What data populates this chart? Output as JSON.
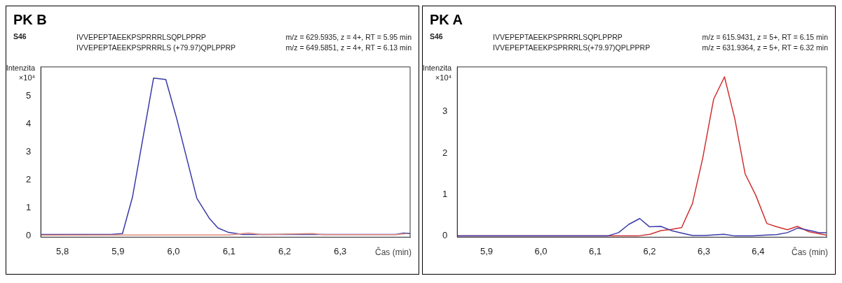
{
  "chart_data": [
    {
      "type": "line",
      "title": "PK B",
      "subtitle": "S46",
      "annotations": [
        "IVVEPEPTAEEKPSPRRRLSQPLPPRP",
        "IVVEPEPTAEEKPSPRRRLS (+79.97)QPLPPRP",
        "m/z = 629.5935, z = 4+, RT = 5.95 min",
        "m/z = 649.5851, z = 4+, RT = 6.13 min"
      ],
      "xlabel": "Čas (min)",
      "ylabel": "Intenzita ×10⁴",
      "xlim": [
        5.761,
        6.426
      ],
      "ylim": [
        -0.05,
        6.05
      ],
      "xticks": [
        {
          "value": 5.8,
          "label": "5,8"
        },
        {
          "value": 5.9,
          "label": "5,9"
        },
        {
          "value": 6.0,
          "label": "6,0"
        },
        {
          "value": 6.1,
          "label": "6,1"
        },
        {
          "value": 6.2,
          "label": "6,2"
        },
        {
          "value": 6.3,
          "label": "6,3"
        }
      ],
      "yticks": [
        0,
        1,
        2,
        3,
        4,
        5
      ],
      "marker": "none",
      "series": [
        {
          "color": "#e08a7a",
          "x": [
            5.761,
            6.1,
            6.135,
            6.16,
            6.2,
            6.25,
            6.27,
            6.4,
            6.42
          ],
          "values": [
            0.02,
            0.03,
            0.1,
            0.04,
            0.06,
            0.08,
            0.04,
            0.04,
            0.08
          ]
        },
        {
          "color": "#3a3aa8",
          "x": [
            5.761,
            5.888,
            5.908,
            5.926,
            5.964,
            5.986,
            6.005,
            6.042,
            6.065,
            6.08,
            6.099,
            6.124,
            6.4,
            6.415,
            6.426
          ],
          "values": [
            0.05,
            0.05,
            0.08,
            1.38,
            5.65,
            5.6,
            4.25,
            1.34,
            0.61,
            0.28,
            0.12,
            0.05,
            0.05,
            0.1,
            0.08
          ]
        }
      ]
    },
    {
      "type": "line",
      "title": "PK A",
      "subtitle": "S46",
      "annotations": [
        "IVVEPEPTAEEKPSPRRRLSQPLPPRP",
        "IVVEPEPTAEEKPSPRRRLS(+79.97)QPLPPRP",
        "m/z = 615.9431, z = 5+, RT = 6.15 min",
        "m/z = 631.9364, z = 5+, RT = 6.32 min"
      ],
      "xlabel": "Čas (min)",
      "ylabel": "Intenzita ×10⁴",
      "xlim": [
        5.846,
        6.526
      ],
      "ylim": [
        -0.03,
        4.08
      ],
      "xticks": [
        {
          "value": 5.9,
          "label": "5,9"
        },
        {
          "value": 6.0,
          "label": "6,0"
        },
        {
          "value": 6.1,
          "label": "6,1"
        },
        {
          "value": 6.2,
          "label": "6,2"
        },
        {
          "value": 6.3,
          "label": "6,3"
        },
        {
          "value": 6.4,
          "label": "6,4"
        }
      ],
      "yticks": [
        0,
        1,
        2,
        3
      ],
      "marker": "none",
      "series": [
        {
          "color": "#3a3aa8",
          "x": [
            5.846,
            6.123,
            6.143,
            6.162,
            6.182,
            6.2,
            6.221,
            6.24,
            6.259,
            6.279,
            6.301,
            6.337,
            6.357,
            6.39,
            6.412,
            6.434,
            6.454,
            6.473,
            6.496,
            6.512,
            6.526
          ],
          "values": [
            0,
            0,
            0.08,
            0.28,
            0.42,
            0.22,
            0.23,
            0.13,
            0.07,
            0.01,
            0.01,
            0.04,
            0,
            0,
            0.02,
            0.03,
            0.08,
            0.19,
            0.13,
            0.08,
            0.08
          ]
        },
        {
          "color": "#d03030",
          "x": [
            5.846,
            6.179,
            6.201,
            6.221,
            6.24,
            6.259,
            6.279,
            6.298,
            6.318,
            6.338,
            6.357,
            6.376,
            6.396,
            6.416,
            6.434,
            6.454,
            6.472,
            6.494,
            6.526
          ],
          "values": [
            0,
            0,
            0.04,
            0.13,
            0.16,
            0.2,
            0.78,
            1.88,
            3.3,
            3.84,
            2.83,
            1.5,
            0.97,
            0.3,
            0.22,
            0.15,
            0.23,
            0.1,
            0.02
          ]
        }
      ]
    }
  ]
}
